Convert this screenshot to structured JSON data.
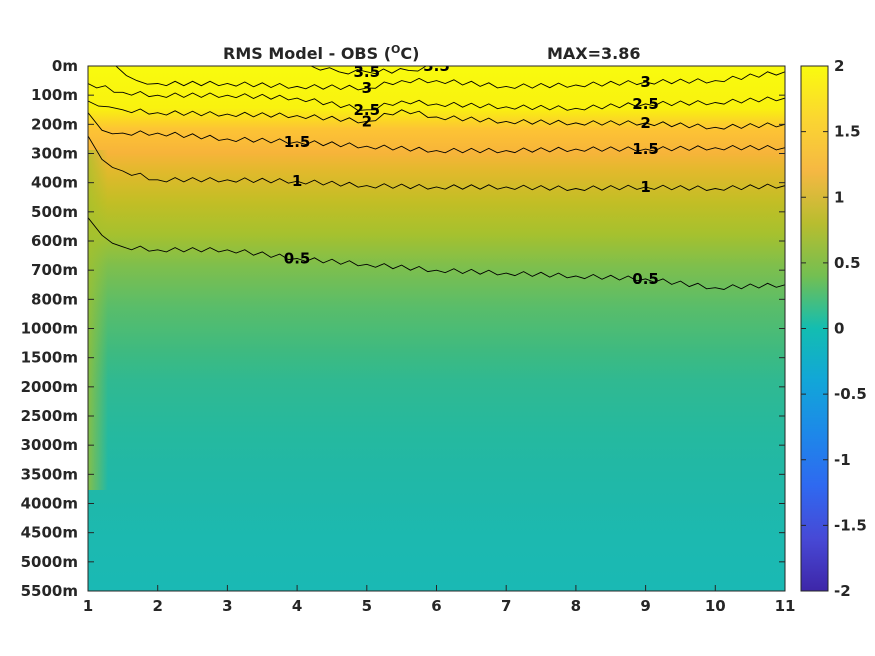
{
  "chart_data": {
    "type": "heatmap",
    "title": "RMS Model - OBS (",
    "title_unit_sup": "O",
    "title_unit_end": "C)",
    "max_label": "MAX=3.86",
    "x_ticks": [
      "1",
      "2",
      "3",
      "4",
      "5",
      "6",
      "7",
      "8",
      "9",
      "10",
      "11"
    ],
    "xlim": [
      1,
      11
    ],
    "y_ticks": [
      "0m",
      "100m",
      "200m",
      "300m",
      "400m",
      "500m",
      "600m",
      "700m",
      "800m",
      "1000m",
      "1500m",
      "2000m",
      "2500m",
      "3000m",
      "3500m",
      "4000m",
      "4500m",
      "5000m",
      "5500m"
    ],
    "y_scale": "level index (depth labels non-uniform)",
    "colorbar": {
      "ticks": [
        "2",
        "1.5",
        "1",
        "0.5",
        "0",
        "-0.5",
        "-1",
        "-1.5",
        "-2"
      ],
      "range": [
        -2,
        2
      ],
      "colormap": "parula"
    },
    "contour_levels": [
      3.5,
      3,
      2.5,
      2,
      1.5,
      1,
      0.5
    ],
    "contours": [
      {
        "level": 0.5,
        "label": "0.5",
        "points": [
          [
            1,
            5.2
          ],
          [
            1.2,
            5.8
          ],
          [
            1.5,
            6.2
          ],
          [
            2,
            6.3
          ],
          [
            3,
            6.3
          ],
          [
            4,
            6.6
          ],
          [
            5,
            6.8
          ],
          [
            6,
            7.0
          ],
          [
            7,
            7.1
          ],
          [
            8,
            7.2
          ],
          [
            9,
            7.3
          ],
          [
            10,
            7.6
          ],
          [
            11,
            7.5
          ]
        ]
      },
      {
        "level": 1.0,
        "label": "1",
        "points": [
          [
            1,
            2.4
          ],
          [
            1.2,
            3.2
          ],
          [
            1.5,
            3.6
          ],
          [
            2,
            3.9
          ],
          [
            3,
            3.9
          ],
          [
            4,
            3.95
          ],
          [
            5,
            4.1
          ],
          [
            6,
            4.15
          ],
          [
            7,
            4.15
          ],
          [
            8,
            4.2
          ],
          [
            9,
            4.15
          ],
          [
            10,
            4.2
          ],
          [
            11,
            4.1
          ]
        ]
      },
      {
        "level": 1.5,
        "label": "1.5",
        "points": [
          [
            1,
            1.6
          ],
          [
            1.2,
            2.2
          ],
          [
            1.5,
            2.3
          ],
          [
            2,
            2.3
          ],
          [
            3,
            2.5
          ],
          [
            4,
            2.6
          ],
          [
            5,
            2.75
          ],
          [
            6,
            2.9
          ],
          [
            7,
            2.9
          ],
          [
            8,
            2.85
          ],
          [
            9,
            2.85
          ],
          [
            10,
            2.8
          ],
          [
            11,
            2.8
          ]
        ]
      },
      {
        "level": 2.0,
        "label": "2",
        "points": [
          [
            1,
            1.2
          ],
          [
            1.3,
            1.4
          ],
          [
            1.5,
            1.5
          ],
          [
            2,
            1.6
          ],
          [
            3,
            1.65
          ],
          [
            4,
            1.7
          ],
          [
            5,
            1.9
          ],
          [
            5.5,
            1.5
          ],
          [
            6,
            1.75
          ],
          [
            7,
            1.9
          ],
          [
            8,
            1.95
          ],
          [
            9,
            1.95
          ],
          [
            10,
            2.1
          ],
          [
            11,
            2.0
          ]
        ]
      },
      {
        "level": 2.5,
        "label": "2.5",
        "points": [
          [
            1,
            0.6
          ],
          [
            1.5,
            0.9
          ],
          [
            2,
            1.0
          ],
          [
            3,
            1.0
          ],
          [
            4,
            1.1
          ],
          [
            5,
            1.5
          ],
          [
            5.5,
            1.2
          ],
          [
            6,
            1.3
          ],
          [
            7,
            1.4
          ],
          [
            8,
            1.45
          ],
          [
            9,
            1.3
          ],
          [
            10,
            1.25
          ],
          [
            11,
            1.1
          ]
        ]
      },
      {
        "level": 3.0,
        "label": "3",
        "points": [
          [
            1.4,
            0.0
          ],
          [
            1.7,
            0.5
          ],
          [
            2,
            0.6
          ],
          [
            3,
            0.6
          ],
          [
            4,
            0.7
          ],
          [
            5,
            0.75
          ],
          [
            5.5,
            0.5
          ],
          [
            6,
            0.5
          ],
          [
            7,
            0.7
          ],
          [
            8,
            0.65
          ],
          [
            9,
            0.55
          ],
          [
            10,
            0.5
          ],
          [
            11,
            0.2
          ]
        ]
      },
      {
        "level": 3.5,
        "label": "3.5",
        "points": [
          [
            4.2,
            0.0
          ],
          [
            4.6,
            0.2
          ],
          [
            5,
            0.2
          ],
          [
            5.6,
            0.15
          ],
          [
            6,
            0.0
          ]
        ]
      }
    ]
  }
}
